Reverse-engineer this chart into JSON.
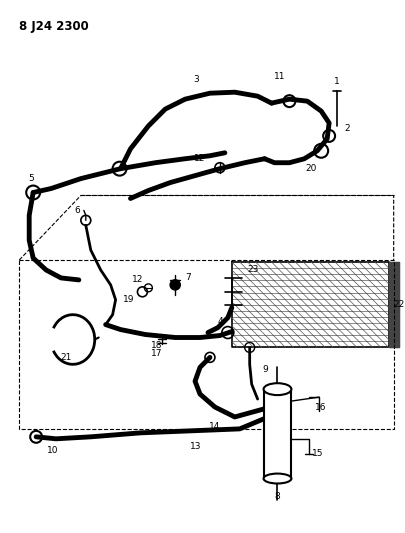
{
  "title": "8 J24 2300",
  "background": "#ffffff",
  "fig_width": 4.06,
  "fig_height": 5.33,
  "dpi": 100
}
